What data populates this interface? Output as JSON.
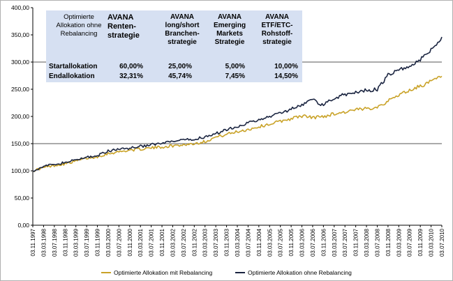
{
  "chart_data": {
    "type": "line",
    "ylim": [
      0,
      400
    ],
    "y_ticks": [
      "0,00",
      "50,00",
      "100,00",
      "150,00",
      "200,00",
      "250,00",
      "300,00",
      "350,00",
      "400,00"
    ],
    "x_ticks": [
      "03.11.1997",
      "03.03.1998",
      "03.07.1998",
      "03.11.1998",
      "03.03.1999",
      "03.07.1999",
      "03.11.1999",
      "03.03.2000",
      "03.07.2000",
      "03.11.2000",
      "03.03.2001",
      "03.07.2001",
      "03.11.2001",
      "03.03.2002",
      "03.07.2002",
      "03.11.2002",
      "03.03.2003",
      "03.07.2003",
      "03.11.2003",
      "03.03.2004",
      "03.07.2004",
      "03.11.2004",
      "03.03.2005",
      "03.07.2005",
      "03.11.2005",
      "03.03.2006",
      "03.07.2006",
      "03.11.2006",
      "03.03.2007",
      "03.07.2007",
      "03.11.2007",
      "03.03.2008",
      "03.07.2008",
      "03.11.2008",
      "03.03.2009",
      "03.07.2009",
      "03.11.2009",
      "03.03.2010",
      "03.07.2010"
    ],
    "grid_lines": [
      150,
      300
    ],
    "legend_position": "bottom",
    "series": [
      {
        "name": "Optimierte Allokation mit Rebalancing",
        "color": "#c9a227",
        "x": [
          "1997-11",
          "1998-03",
          "1998-07",
          "1998-11",
          "1999-03",
          "1999-07",
          "1999-11",
          "2000-03",
          "2000-07",
          "2000-11",
          "2001-03",
          "2001-07",
          "2001-11",
          "2002-03",
          "2002-07",
          "2002-11",
          "2003-03",
          "2003-07",
          "2003-11",
          "2004-03",
          "2004-07",
          "2004-11",
          "2005-03",
          "2005-07",
          "2005-11",
          "2006-03",
          "2006-07",
          "2006-11",
          "2007-03",
          "2007-07",
          "2007-11",
          "2008-03",
          "2008-07",
          "2008-11",
          "2009-03",
          "2009-07",
          "2009-11",
          "2010-03",
          "2010-07"
        ],
        "values": [
          100,
          106,
          110,
          113,
          118,
          123,
          126,
          132,
          135,
          138,
          140,
          142,
          144,
          146,
          148,
          150,
          154,
          162,
          167,
          172,
          176,
          181,
          186,
          191,
          196,
          201,
          198,
          200,
          205,
          208,
          212,
          214,
          218,
          228,
          240,
          248,
          256,
          264,
          274
        ]
      },
      {
        "name": "Optimierte Allokation ohne Rebalancing",
        "color": "#1a2440",
        "x": [
          "1997-11",
          "1998-03",
          "1998-07",
          "1998-11",
          "1999-03",
          "1999-07",
          "1999-11",
          "2000-03",
          "2000-07",
          "2000-11",
          "2001-03",
          "2001-07",
          "2001-11",
          "2002-03",
          "2002-07",
          "2002-11",
          "2003-03",
          "2003-07",
          "2003-11",
          "2004-03",
          "2004-07",
          "2004-11",
          "2005-03",
          "2005-07",
          "2005-11",
          "2006-03",
          "2006-07",
          "2006-11",
          "2007-03",
          "2007-07",
          "2007-11",
          "2008-03",
          "2008-07",
          "2008-11",
          "2009-03",
          "2009-07",
          "2009-11",
          "2010-03",
          "2010-07"
        ],
        "values": [
          100,
          108,
          112,
          115,
          120,
          125,
          128,
          136,
          140,
          142,
          145,
          148,
          150,
          154,
          156,
          158,
          163,
          168,
          176,
          182,
          188,
          193,
          200,
          206,
          214,
          222,
          230,
          221,
          234,
          240,
          245,
          248,
          250,
          276,
          285,
          292,
          305,
          322,
          346
        ]
      }
    ]
  },
  "allocation_table": {
    "headers": [
      "Optimierte Allokation ohne Rebalancing",
      "AVANA Renten-strategie",
      "AVANA long/short Branchen-strategie",
      "AVANA Emerging Markets Strategie",
      "AVANA ETF/ETC-Rohstoff-strategie"
    ],
    "rows": [
      {
        "label": "Startallokation",
        "values": [
          "60,00%",
          "25,00%",
          "5,00%",
          "10,00%"
        ]
      },
      {
        "label": "Endallokation",
        "values": [
          "32,31%",
          "45,74%",
          "7,45%",
          "14,50%"
        ]
      }
    ]
  },
  "legend": [
    {
      "label": "Optimierte Allokation mit Rebalancing",
      "color": "#c9a227"
    },
    {
      "label": "Optimierte Allokation ohne Rebalancing",
      "color": "#1a2440"
    }
  ]
}
